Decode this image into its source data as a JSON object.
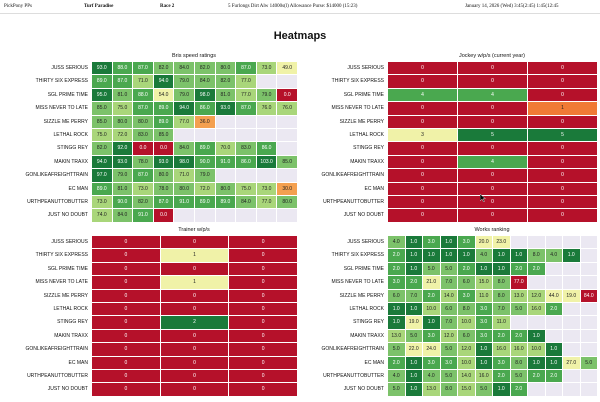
{
  "header": {
    "brand": "PickPony PPs",
    "track": "Turf Paradise",
    "race": "Race 2",
    "conditions": "5 Furlongs Dirt Alw 14000s(l) Allowance Purse: $14000 (15:23)",
    "date": "January 14, 2026 (Wed) 3:45(2:45) 1:45(12:45"
  },
  "page_title": "Heatmaps",
  "horses": [
    "JUSS SERIOUS",
    "THIRTY SIX EXPRESS",
    "SGL PRIME TIME",
    "MISS NEVER TO LATE",
    "SIZZLE ME PERRY",
    "LETHAL ROCK",
    "STINGG REY",
    "MAKIN TRAXX",
    "GONLIKEAFREIGHTTRAIN",
    "EC MAN",
    "URTHPEANUTTOBUTTER",
    "JUST NO DOUBT"
  ],
  "colors": {
    "dark_green": "#1a7a3a",
    "green": "#4aa84f",
    "mid_green": "#7cc26a",
    "light_green": "#a9d67a",
    "pale_yellow": "#f0f2a8",
    "orange": "#f4a050",
    "deep_orange": "#f07a35",
    "red": "#b5112a",
    "empty": "#ebe8f2"
  },
  "panels": {
    "bris": {
      "title": "Bris speed ratings",
      "rows": [
        [
          "93.0",
          "88.0",
          "87.0",
          "82.0",
          "84.0",
          "82.0",
          "80.0",
          "87.0",
          "73.0",
          "49.0"
        ],
        [
          "89.0",
          "87.0",
          "71.0",
          "94.0",
          "79.0",
          "84.0",
          "82.0",
          "77.0",
          "",
          ""
        ],
        [
          "95.0",
          "81.0",
          "88.0",
          "54.0",
          "79.0",
          "98.0",
          "81.0",
          "77.0",
          "79.0",
          "0.0"
        ],
        [
          "85.0",
          "75.0",
          "87.0",
          "89.0",
          "94.0",
          "86.0",
          "93.0",
          "87.0",
          "76.0",
          "76.0"
        ],
        [
          "85.0",
          "80.0",
          "80.0",
          "89.0",
          "77.0",
          "36.0",
          "",
          "",
          "",
          ""
        ],
        [
          "75.0",
          "72.0",
          "83.0",
          "85.0",
          "",
          "",
          "",
          "",
          "",
          ""
        ],
        [
          "82.0",
          "92.0",
          "0.0",
          "0.0",
          "84.0",
          "89.0",
          "70.0",
          "83.0",
          "86.0",
          ""
        ],
        [
          "94.0",
          "93.0",
          "78.0",
          "93.0",
          "98.0",
          "90.0",
          "91.0",
          "86.0",
          "103.0",
          "85.0"
        ],
        [
          "97.0",
          "79.0",
          "87.0",
          "80.0",
          "71.0",
          "79.0",
          "",
          "",
          "",
          ""
        ],
        [
          "89.0",
          "81.0",
          "73.0",
          "78.0",
          "80.0",
          "72.0",
          "80.0",
          "75.0",
          "73.0",
          "30.0"
        ],
        [
          "73.0",
          "90.0",
          "82.0",
          "87.0",
          "91.0",
          "89.0",
          "89.0",
          "84.0",
          "77.0",
          "80.0"
        ],
        [
          "74.0",
          "84.0",
          "91.0",
          "0.0",
          "",
          "",
          "",
          "",
          "",
          ""
        ]
      ]
    },
    "jockey": {
      "title": "Jockey w/p/s (current year)",
      "rows": [
        [
          "0",
          "0",
          "0"
        ],
        [
          "0",
          "0",
          "0"
        ],
        [
          "4",
          "4",
          "0"
        ],
        [
          "0",
          "0",
          "1"
        ],
        [
          "0",
          "0",
          "0"
        ],
        [
          "3",
          "5",
          "5"
        ],
        [
          "0",
          "0",
          "0"
        ],
        [
          "0",
          "4",
          "0"
        ],
        [
          "0",
          "0",
          "0"
        ],
        [
          "0",
          "0",
          "0"
        ],
        [
          "0",
          "0",
          "0"
        ],
        [
          "0",
          "0",
          "0"
        ]
      ]
    },
    "trainer": {
      "title": "Trainer w/p/s",
      "rows": [
        [
          "0",
          "0",
          "0"
        ],
        [
          "0",
          "1",
          "0"
        ],
        [
          "0",
          "0",
          "0"
        ],
        [
          "0",
          "1",
          "0"
        ],
        [
          "0",
          "0",
          "0"
        ],
        [
          "0",
          "0",
          "0"
        ],
        [
          "0",
          "2",
          "0"
        ],
        [
          "0",
          "0",
          "0"
        ],
        [
          "0",
          "0",
          "0"
        ],
        [
          "0",
          "0",
          "0"
        ],
        [
          "0",
          "0",
          "0"
        ],
        [
          "0",
          "0",
          "0"
        ]
      ]
    },
    "works": {
      "title": "Works ranking",
      "rows": [
        [
          "4.0",
          "1.0",
          "3.0",
          "1.0",
          "3.0",
          "20.0",
          "23.0",
          "",
          "",
          "",
          "",
          ""
        ],
        [
          "2.0",
          "1.0",
          "1.0",
          "1.0",
          "1.0",
          "4.0",
          "1.0",
          "1.0",
          "8.0",
          "4.0",
          "1.0",
          ""
        ],
        [
          "2.0",
          "1.0",
          "5.0",
          "5.0",
          "2.0",
          "1.0",
          "1.0",
          "2.0",
          "2.0",
          "",
          "",
          ""
        ],
        [
          "3.0",
          "2.0",
          "21.0",
          "7.0",
          "6.0",
          "15.0",
          "8.0",
          "77.0",
          "",
          "",
          "",
          ""
        ],
        [
          "6.0",
          "7.0",
          "2.0",
          "14.0",
          "3.0",
          "11.0",
          "8.0",
          "13.0",
          "12.0",
          "44.0",
          "19.0",
          "84.0"
        ],
        [
          "1.0",
          "1.0",
          "10.0",
          "6.0",
          "8.0",
          "3.0",
          "7.0",
          "5.0",
          "16.0",
          "2.0",
          "",
          ""
        ],
        [
          "1.0",
          "19.0",
          "1.0",
          "7.0",
          "10.0",
          "3.0",
          "11.0",
          "",
          "",
          "",
          "",
          ""
        ],
        [
          "13.0",
          "5.0",
          "3.0",
          "12.0",
          "6.0",
          "3.0",
          "2.0",
          "2.0",
          "1.0",
          "",
          "",
          ""
        ],
        [
          "5.0",
          "22.0",
          "24.0",
          "5.0",
          "12.0",
          "1.0",
          "16.0",
          "16.0",
          "10.0",
          "1.0",
          "",
          ""
        ],
        [
          "2.0",
          "1.0",
          "3.0",
          "3.0",
          "10.0",
          "1.0",
          "3.0",
          "8.0",
          "1.0",
          "1.0",
          "27.0",
          "5.0"
        ],
        [
          "4.0",
          "1.0",
          "4.0",
          "5.0",
          "14.0",
          "16.0",
          "2.0",
          "5.0",
          "2.0",
          "2.0",
          "",
          ""
        ],
        [
          "5.0",
          "1.0",
          "13.0",
          "8.0",
          "15.0",
          "5.0",
          "1.0",
          "2.0",
          "",
          "",
          "",
          ""
        ]
      ]
    }
  }
}
